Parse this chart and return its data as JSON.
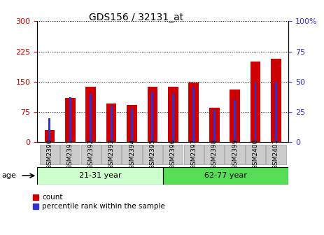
{
  "title": "GDS156 / 32131_at",
  "samples": [
    "GSM2390",
    "GSM2391",
    "GSM2392",
    "GSM2393",
    "GSM2394",
    "GSM2395",
    "GSM2396",
    "GSM2397",
    "GSM2398",
    "GSM2399",
    "GSM2400",
    "GSM2401"
  ],
  "count_values": [
    30,
    110,
    138,
    95,
    92,
    138,
    138,
    147,
    85,
    130,
    200,
    207
  ],
  "percentile_values": [
    20,
    37,
    40,
    30,
    28,
    42,
    40,
    45,
    27,
    35,
    50,
    50
  ],
  "group1_label": "21-31 year",
  "group2_label": "62-77 year",
  "group1_count": 6,
  "group2_count": 6,
  "age_label": "age",
  "bar_color_red": "#cc0000",
  "bar_color_blue": "#3333cc",
  "group1_bg": "#ccffcc",
  "group2_bg": "#55dd55",
  "xlabel_bg": "#cccccc",
  "left_yticks": [
    0,
    75,
    150,
    225,
    300
  ],
  "right_yticks": [
    0,
    25,
    50,
    75,
    100
  ],
  "left_ylim": [
    0,
    300
  ],
  "right_ylim": [
    0,
    100
  ],
  "left_ylabel_color": "#cc0000",
  "right_ylabel_color": "#3333cc",
  "legend_count_label": "count",
  "legend_pct_label": "percentile rank within the sample",
  "red_bar_width": 0.5,
  "blue_bar_width": 0.1
}
